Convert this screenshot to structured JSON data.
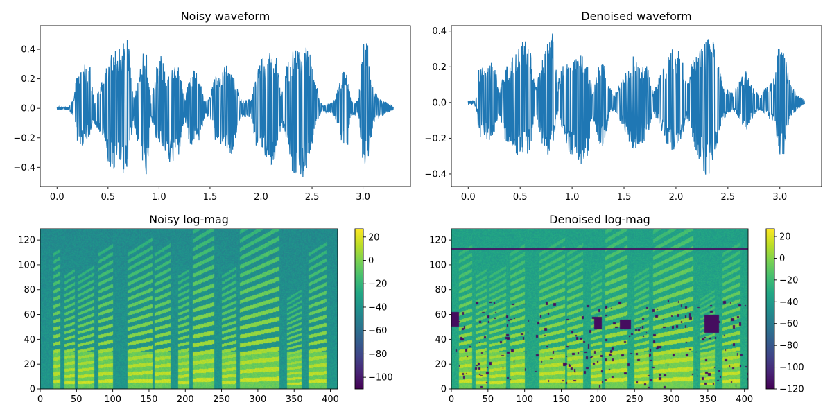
{
  "chart_data": [
    {
      "type": "line",
      "title": "Noisy waveform",
      "xlim": [
        -0.165,
        3.465
      ],
      "ylim": [
        -0.53,
        0.56
      ],
      "x_ticks": [
        0.0,
        0.5,
        1.0,
        1.5,
        2.0,
        2.5,
        3.0
      ],
      "x_tick_labels": [
        "0.0",
        "0.5",
        "1.0",
        "1.5",
        "2.0",
        "2.5",
        "3.0"
      ],
      "y_ticks": [
        -0.4,
        -0.2,
        0.0,
        0.2,
        0.4
      ],
      "y_tick_labels": [
        "−0.4",
        "−0.2",
        "0.0",
        "0.2",
        "0.4"
      ],
      "line_color": "#1f77b4",
      "duration": 3.3,
      "envelope": [
        [
          0.0,
          0.01,
          -0.01
        ],
        [
          0.12,
          0.01,
          -0.01
        ],
        [
          0.17,
          0.08,
          -0.08
        ],
        [
          0.19,
          0.22,
          -0.25
        ],
        [
          0.23,
          0.25,
          -0.26
        ],
        [
          0.27,
          0.3,
          -0.23
        ],
        [
          0.32,
          0.31,
          -0.18
        ],
        [
          0.37,
          0.05,
          -0.1
        ],
        [
          0.45,
          0.2,
          -0.2
        ],
        [
          0.5,
          0.32,
          -0.36
        ],
        [
          0.55,
          0.38,
          -0.44
        ],
        [
          0.6,
          0.4,
          -0.4
        ],
        [
          0.64,
          0.43,
          -0.47
        ],
        [
          0.68,
          0.52,
          -0.42
        ],
        [
          0.72,
          0.32,
          -0.24
        ],
        [
          0.75,
          0.08,
          -0.08
        ],
        [
          0.8,
          0.25,
          -0.28
        ],
        [
          0.85,
          0.41,
          -0.38
        ],
        [
          0.88,
          0.36,
          -0.46
        ],
        [
          0.92,
          0.05,
          -0.06
        ],
        [
          0.98,
          0.3,
          -0.22
        ],
        [
          1.02,
          0.38,
          -0.28
        ],
        [
          1.06,
          0.23,
          -0.3
        ],
        [
          1.1,
          0.27,
          -0.36
        ],
        [
          1.16,
          0.3,
          -0.37
        ],
        [
          1.2,
          0.33,
          -0.3
        ],
        [
          1.25,
          0.06,
          -0.06
        ],
        [
          1.3,
          0.24,
          -0.24
        ],
        [
          1.36,
          0.3,
          -0.28
        ],
        [
          1.4,
          0.21,
          -0.2
        ],
        [
          1.45,
          0.05,
          -0.05
        ],
        [
          1.5,
          0.08,
          -0.06
        ],
        [
          1.55,
          0.22,
          -0.22
        ],
        [
          1.6,
          0.21,
          -0.25
        ],
        [
          1.65,
          0.3,
          -0.27
        ],
        [
          1.7,
          0.26,
          -0.33
        ],
        [
          1.75,
          0.2,
          -0.22
        ],
        [
          1.8,
          0.06,
          -0.06
        ],
        [
          1.9,
          0.06,
          -0.06
        ],
        [
          1.95,
          0.22,
          -0.25
        ],
        [
          2.0,
          0.33,
          -0.29
        ],
        [
          2.05,
          0.36,
          -0.34
        ],
        [
          2.1,
          0.38,
          -0.38
        ],
        [
          2.15,
          0.35,
          -0.35
        ],
        [
          2.2,
          0.09,
          -0.1
        ],
        [
          2.25,
          0.3,
          -0.22
        ],
        [
          2.3,
          0.36,
          -0.42
        ],
        [
          2.35,
          0.47,
          -0.46
        ],
        [
          2.4,
          0.37,
          -0.5
        ],
        [
          2.45,
          0.42,
          -0.4
        ],
        [
          2.5,
          0.33,
          -0.27
        ],
        [
          2.55,
          0.14,
          -0.1
        ],
        [
          2.6,
          0.02,
          -0.02
        ],
        [
          2.7,
          0.04,
          -0.04
        ],
        [
          2.75,
          0.12,
          -0.12
        ],
        [
          2.8,
          0.25,
          -0.25
        ],
        [
          2.85,
          0.22,
          -0.26
        ],
        [
          2.88,
          0.06,
          -0.05
        ],
        [
          2.95,
          0.05,
          -0.04
        ],
        [
          3.0,
          0.44,
          -0.37
        ],
        [
          3.03,
          0.49,
          -0.4
        ],
        [
          3.06,
          0.4,
          -0.3
        ],
        [
          3.1,
          0.12,
          -0.1
        ],
        [
          3.2,
          0.05,
          -0.05
        ],
        [
          3.3,
          0.01,
          -0.01
        ]
      ]
    },
    {
      "type": "line",
      "title": "Denoised waveform",
      "xlim": [
        -0.162,
        3.402
      ],
      "ylim": [
        -0.47,
        0.43
      ],
      "x_ticks": [
        0.0,
        0.5,
        1.0,
        1.5,
        2.0,
        2.5,
        3.0
      ],
      "x_tick_labels": [
        "0.0",
        "0.5",
        "1.0",
        "1.5",
        "2.0",
        "2.5",
        "3.0"
      ],
      "y_ticks": [
        -0.4,
        -0.2,
        0.0,
        0.2,
        0.4
      ],
      "y_tick_labels": [
        "−0.4",
        "−0.2",
        "0.0",
        "0.2",
        "0.4"
      ],
      "line_color": "#1f77b4",
      "duration": 3.24,
      "envelope": [
        [
          0.0,
          0.01,
          -0.01
        ],
        [
          0.06,
          0.01,
          -0.01
        ],
        [
          0.09,
          0.06,
          -0.06
        ],
        [
          0.1,
          0.19,
          -0.21
        ],
        [
          0.15,
          0.22,
          -0.18
        ],
        [
          0.2,
          0.22,
          -0.22
        ],
        [
          0.25,
          0.24,
          -0.18
        ],
        [
          0.3,
          0.05,
          -0.07
        ],
        [
          0.35,
          0.18,
          -0.2
        ],
        [
          0.42,
          0.25,
          -0.28
        ],
        [
          0.48,
          0.3,
          -0.32
        ],
        [
          0.52,
          0.34,
          -0.28
        ],
        [
          0.56,
          0.36,
          -0.3
        ],
        [
          0.6,
          0.28,
          -0.25
        ],
        [
          0.65,
          0.08,
          -0.06
        ],
        [
          0.72,
          0.25,
          -0.25
        ],
        [
          0.78,
          0.36,
          -0.3
        ],
        [
          0.82,
          0.41,
          -0.23
        ],
        [
          0.86,
          0.1,
          -0.06
        ],
        [
          0.9,
          0.2,
          -0.14
        ],
        [
          0.95,
          0.25,
          -0.26
        ],
        [
          1.0,
          0.22,
          -0.3
        ],
        [
          1.05,
          0.25,
          -0.33
        ],
        [
          1.1,
          0.28,
          -0.35
        ],
        [
          1.15,
          0.2,
          -0.3
        ],
        [
          1.2,
          0.06,
          -0.07
        ],
        [
          1.25,
          0.22,
          -0.22
        ],
        [
          1.3,
          0.24,
          -0.25
        ],
        [
          1.35,
          0.1,
          -0.1
        ],
        [
          1.4,
          0.04,
          -0.04
        ],
        [
          1.48,
          0.13,
          -0.12
        ],
        [
          1.55,
          0.2,
          -0.22
        ],
        [
          1.6,
          0.3,
          -0.27
        ],
        [
          1.65,
          0.19,
          -0.24
        ],
        [
          1.72,
          0.23,
          -0.2
        ],
        [
          1.78,
          0.05,
          -0.05
        ],
        [
          1.85,
          0.16,
          -0.14
        ],
        [
          1.9,
          0.22,
          -0.22
        ],
        [
          1.95,
          0.3,
          -0.26
        ],
        [
          2.0,
          0.29,
          -0.28
        ],
        [
          2.05,
          0.3,
          -0.23
        ],
        [
          2.1,
          0.1,
          -0.07
        ],
        [
          2.15,
          0.22,
          -0.2
        ],
        [
          2.2,
          0.28,
          -0.28
        ],
        [
          2.25,
          0.3,
          -0.36
        ],
        [
          2.3,
          0.35,
          -0.42
        ],
        [
          2.35,
          0.38,
          -0.36
        ],
        [
          2.4,
          0.23,
          -0.22
        ],
        [
          2.45,
          0.1,
          -0.1
        ],
        [
          2.55,
          0.05,
          -0.04
        ],
        [
          2.62,
          0.13,
          -0.1
        ],
        [
          2.68,
          0.18,
          -0.17
        ],
        [
          2.72,
          0.1,
          -0.1
        ],
        [
          2.8,
          0.04,
          -0.04
        ],
        [
          2.95,
          0.14,
          -0.12
        ],
        [
          3.0,
          0.37,
          -0.3
        ],
        [
          3.04,
          0.3,
          -0.3
        ],
        [
          3.1,
          0.1,
          -0.08
        ],
        [
          3.2,
          0.03,
          -0.02
        ],
        [
          3.24,
          0.01,
          -0.01
        ]
      ]
    },
    {
      "type": "heatmap",
      "title": "Noisy log-mag",
      "xlim": [
        0,
        410
      ],
      "ylim": [
        0,
        129
      ],
      "x_ticks": [
        0,
        50,
        100,
        150,
        200,
        250,
        300,
        350,
        400
      ],
      "x_tick_labels": [
        "0",
        "50",
        "100",
        "150",
        "200",
        "250",
        "300",
        "350",
        "400"
      ],
      "y_ticks": [
        0,
        20,
        40,
        60,
        80,
        100,
        120
      ],
      "y_tick_labels": [
        "0",
        "20",
        "40",
        "60",
        "80",
        "100",
        "120"
      ],
      "colormap": "viridis",
      "colorbar": {
        "range": [
          -110,
          27
        ],
        "ticks": [
          20,
          0,
          -20,
          -40,
          -60,
          -80,
          -100
        ],
        "tick_labels": [
          "20",
          "0",
          "−20",
          "−40",
          "−60",
          "−80",
          "−100"
        ]
      },
      "speech_segments": [
        [
          18,
          28,
          6
        ],
        [
          33,
          48,
          5
        ],
        [
          52,
          75,
          5
        ],
        [
          80,
          100,
          6
        ],
        [
          120,
          155,
          6
        ],
        [
          158,
          180,
          6
        ],
        [
          190,
          205,
          5
        ],
        [
          210,
          240,
          7
        ],
        [
          250,
          270,
          5
        ],
        [
          275,
          330,
          7
        ],
        [
          340,
          360,
          4
        ],
        [
          370,
          395,
          6
        ]
      ],
      "floor": -38,
      "has_holes": false
    },
    {
      "type": "heatmap",
      "title": "Denoised log-mag",
      "xlim": [
        0,
        405
      ],
      "ylim": [
        0,
        129
      ],
      "x_ticks": [
        0,
        50,
        100,
        150,
        200,
        250,
        300,
        350,
        400
      ],
      "x_tick_labels": [
        "0",
        "50",
        "100",
        "150",
        "200",
        "250",
        "300",
        "350",
        "400"
      ],
      "y_ticks": [
        0,
        20,
        40,
        60,
        80,
        100,
        120
      ],
      "y_tick_labels": [
        "0",
        "20",
        "40",
        "60",
        "80",
        "100",
        "120"
      ],
      "colormap": "viridis",
      "colorbar": {
        "range": [
          -120,
          27
        ],
        "ticks": [
          20,
          0,
          -20,
          -40,
          -60,
          -80,
          -100,
          -120
        ],
        "tick_labels": [
          "20",
          "0",
          "−20",
          "−40",
          "−60",
          "−80",
          "−100",
          "−120"
        ]
      },
      "speech_segments": [
        [
          10,
          28,
          6
        ],
        [
          33,
          48,
          5
        ],
        [
          52,
          75,
          5
        ],
        [
          80,
          100,
          6
        ],
        [
          120,
          155,
          6
        ],
        [
          158,
          180,
          6
        ],
        [
          190,
          205,
          5
        ],
        [
          210,
          240,
          7
        ],
        [
          250,
          270,
          5
        ],
        [
          275,
          330,
          7
        ],
        [
          340,
          360,
          4
        ],
        [
          370,
          395,
          6
        ]
      ],
      "floor": -30,
      "has_holes": true
    }
  ]
}
